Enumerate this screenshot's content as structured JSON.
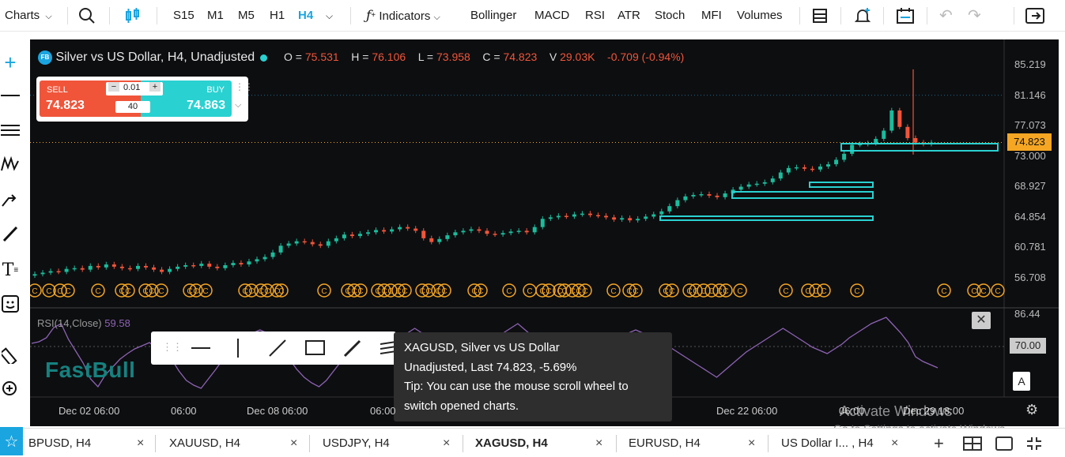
{
  "toolbar": {
    "charts_label": "Charts",
    "timeframes": [
      "S15",
      "M1",
      "M5",
      "H1",
      "H4"
    ],
    "active_timeframe": "H4",
    "indicators_label": "Indicators",
    "indicator_buttons": [
      "Bollinger",
      "MACD",
      "RSI",
      "ATR",
      "Stoch",
      "MFI",
      "Volumes"
    ]
  },
  "chart": {
    "symbol_badge": "FB",
    "title": "Silver vs US Dollar, H4, Unadjusted",
    "ohlc": {
      "o_label": "O",
      "o": "75.531",
      "h_label": "H",
      "h": "76.106",
      "l_label": "L",
      "l": "73.958",
      "c_label": "C",
      "c": "74.823",
      "v_label": "V",
      "v": "29.03K",
      "change": "-0.709 (-0.94%)"
    },
    "price_scale": [
      "85.219",
      "81.146",
      "77.073",
      "73.000",
      "68.927",
      "64.854",
      "60.781",
      "56.708"
    ],
    "last_price_tag": "74.823",
    "time_axis": [
      "Dec 02 06:00",
      "06:00",
      "Dec 08 06:00",
      "06:00",
      "Dec 22 06:00",
      "06:00",
      "Dec 29 18:00"
    ],
    "dividend_marker": "C",
    "colors": {
      "up": "#1abc9c",
      "down": "#f0553a",
      "accent": "#2ad1d1",
      "rsi": "#8e63b5",
      "last": "#f5a623"
    }
  },
  "trade_panel": {
    "sell_label": "SELL",
    "sell_price": "74.823",
    "buy_label": "BUY",
    "buy_price": "74.863",
    "lot": "0.01",
    "spread": "40",
    "minus": "−",
    "plus": "+"
  },
  "rsi": {
    "label": "RSI(14,Close)",
    "value": "59.58",
    "scale_top": "86.44",
    "scale_mid": "70.00"
  },
  "watermark": "FastBull",
  "tooltip": {
    "line1": "XAGUSD, Silver vs US Dollar",
    "line2": "Unadjusted, Last 74.823, -5.69%",
    "line3": "Tip: You can use the mouse scroll wheel to",
    "line4": "switch opened charts."
  },
  "activation": {
    "line1": "Activate Windows",
    "line2": "Go to Settings to activate Windows."
  },
  "auto_button": "A",
  "tabs": [
    {
      "label": "BPUSD, H4"
    },
    {
      "label": "XAUUSD, H4"
    },
    {
      "label": "USDJPY, H4"
    },
    {
      "label": "XAGUSD, H4"
    },
    {
      "label": "EURUSD, H4"
    },
    {
      "label": "US Dollar I... , H4"
    }
  ],
  "tab_close": "×",
  "tab_add": "+"
}
